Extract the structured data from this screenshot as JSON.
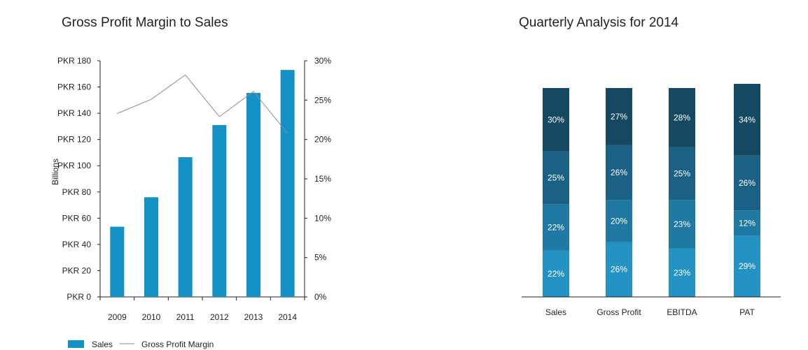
{
  "chart_data": [
    {
      "type": "bar",
      "title": "Gross Profit Margin to Sales",
      "ylabel": "Billions",
      "categories": [
        "2009",
        "2010",
        "2011",
        "2012",
        "2013",
        "2014"
      ],
      "ylim": [
        0,
        180
      ],
      "y_ticks": [
        0,
        20,
        40,
        60,
        80,
        100,
        120,
        140,
        160,
        180
      ],
      "y_tick_labels": [
        "PKR 0",
        "PKR 20",
        "PKR 40",
        "PKR 60",
        "PKR 80",
        "PKR 100",
        "PKR 120",
        "PKR 140",
        "PKR 160",
        "PKR 180"
      ],
      "y2lim": [
        0,
        30
      ],
      "y2_ticks": [
        0,
        5,
        10,
        15,
        20,
        25,
        30
      ],
      "y2_tick_labels": [
        "0%",
        "5%",
        "10%",
        "15%",
        "20%",
        "25%",
        "30%"
      ],
      "series": [
        {
          "name": "Sales",
          "kind": "bar",
          "axis": "left",
          "color": "#1492c6",
          "values": [
            53.5,
            76,
            106.5,
            131,
            155.5,
            173
          ]
        },
        {
          "name": "Gross Profit Margin",
          "kind": "line",
          "axis": "right",
          "color": "#8a8c8e",
          "values": [
            23.3,
            25.1,
            28.2,
            22.9,
            26.1,
            20.8
          ]
        }
      ],
      "legend": "bottom-left",
      "grid": false
    },
    {
      "type": "bar",
      "stacked": true,
      "title": "Quarterly Analysis for 2014",
      "categories": [
        "Sales",
        "Gross Profit",
        "EBITDA",
        "PAT"
      ],
      "series": [
        {
          "color": "#2592c4",
          "values": [
            22,
            26,
            23,
            29
          ],
          "labels": [
            "22%",
            "26%",
            "23%",
            "29%"
          ]
        },
        {
          "color": "#2079a3",
          "values": [
            22,
            20,
            23,
            12
          ],
          "labels": [
            "22%",
            "20%",
            "23%",
            "12%"
          ]
        },
        {
          "color": "#1b6186",
          "values": [
            25,
            26,
            25,
            26
          ],
          "labels": [
            "25%",
            "26%",
            "25%",
            "26%"
          ]
        },
        {
          "color": "#154861",
          "values": [
            30,
            27,
            28,
            34
          ],
          "labels": [
            "30%",
            "27%",
            "28%",
            "34%"
          ]
        }
      ],
      "legend": "none",
      "grid": false
    }
  ]
}
